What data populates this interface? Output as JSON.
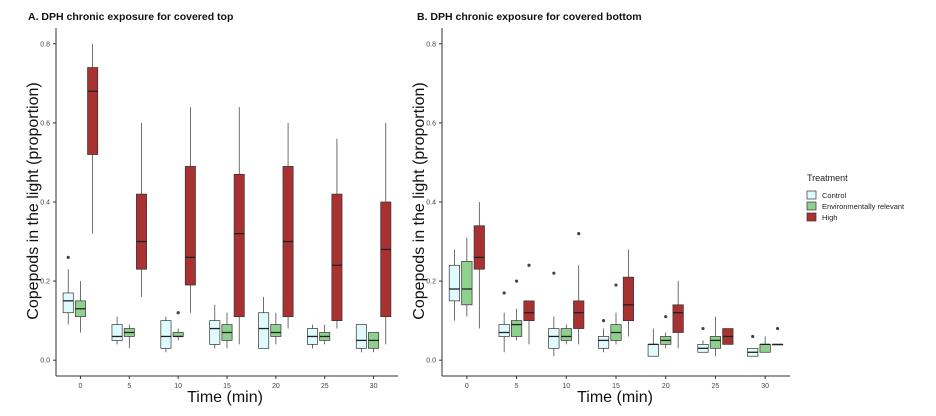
{
  "colors": {
    "control": "#e0fbfd",
    "env": "#90d08e",
    "high": "#a83232",
    "outline": "#333333"
  },
  "legend": {
    "title": "Treatment",
    "items": [
      {
        "label": "Control",
        "color": "#e0fbfd"
      },
      {
        "label": "Environmentally relevant",
        "color": "#90d08e"
      },
      {
        "label": "High",
        "color": "#a83232"
      }
    ]
  },
  "chart_data": [
    {
      "type": "box",
      "title": "A. DPH chronic exposure for covered top",
      "xlabel": "Time (min)",
      "ylabel": "Copepods in the light (proportion)",
      "categories": [
        "0",
        "5",
        "10",
        "15",
        "20",
        "25",
        "30"
      ],
      "ylim": [
        -0.04,
        0.84
      ],
      "yticks": [
        "0.0",
        "0.2",
        "0.4",
        "0.6",
        "0.8"
      ],
      "grid": false,
      "series": [
        {
          "name": "Control",
          "boxes": [
            {
              "min": 0.09,
              "q1": 0.12,
              "median": 0.15,
              "q3": 0.17,
              "max": 0.23,
              "outliers": [
                0.26
              ]
            },
            {
              "min": 0.04,
              "q1": 0.05,
              "median": 0.06,
              "q3": 0.09,
              "max": 0.11,
              "outliers": []
            },
            {
              "min": 0.02,
              "q1": 0.03,
              "median": 0.06,
              "q3": 0.1,
              "max": 0.11,
              "outliers": []
            },
            {
              "min": 0.03,
              "q1": 0.04,
              "median": 0.08,
              "q3": 0.1,
              "max": 0.14,
              "outliers": []
            },
            {
              "min": 0.03,
              "q1": 0.03,
              "median": 0.08,
              "q3": 0.12,
              "max": 0.16,
              "outliers": []
            },
            {
              "min": 0.03,
              "q1": 0.04,
              "median": 0.06,
              "q3": 0.08,
              "max": 0.09,
              "outliers": []
            },
            {
              "min": 0.02,
              "q1": 0.03,
              "median": 0.05,
              "q3": 0.09,
              "max": 0.09,
              "outliers": []
            }
          ]
        },
        {
          "name": "Environmentally relevant",
          "boxes": [
            {
              "min": 0.07,
              "q1": 0.11,
              "median": 0.13,
              "q3": 0.15,
              "max": 0.2,
              "outliers": []
            },
            {
              "min": 0.03,
              "q1": 0.06,
              "median": 0.07,
              "q3": 0.08,
              "max": 0.09,
              "outliers": []
            },
            {
              "min": 0.05,
              "q1": 0.06,
              "median": 0.06,
              "q3": 0.07,
              "max": 0.08,
              "outliers": [
                0.12
              ]
            },
            {
              "min": 0.03,
              "q1": 0.05,
              "median": 0.07,
              "q3": 0.09,
              "max": 0.12,
              "outliers": []
            },
            {
              "min": 0.04,
              "q1": 0.06,
              "median": 0.07,
              "q3": 0.09,
              "max": 0.12,
              "outliers": []
            },
            {
              "min": 0.04,
              "q1": 0.05,
              "median": 0.06,
              "q3": 0.07,
              "max": 0.09,
              "outliers": []
            },
            {
              "min": 0.02,
              "q1": 0.03,
              "median": 0.05,
              "q3": 0.07,
              "max": 0.07,
              "outliers": []
            }
          ]
        },
        {
          "name": "High",
          "boxes": [
            {
              "min": 0.32,
              "q1": 0.52,
              "median": 0.68,
              "q3": 0.74,
              "max": 0.8,
              "outliers": []
            },
            {
              "min": 0.16,
              "q1": 0.23,
              "median": 0.3,
              "q3": 0.42,
              "max": 0.6,
              "outliers": []
            },
            {
              "min": 0.12,
              "q1": 0.19,
              "median": 0.26,
              "q3": 0.49,
              "max": 0.64,
              "outliers": []
            },
            {
              "min": 0.04,
              "q1": 0.11,
              "median": 0.32,
              "q3": 0.47,
              "max": 0.64,
              "outliers": []
            },
            {
              "min": 0.08,
              "q1": 0.11,
              "median": 0.3,
              "q3": 0.49,
              "max": 0.6,
              "outliers": []
            },
            {
              "min": 0.08,
              "q1": 0.1,
              "median": 0.24,
              "q3": 0.42,
              "max": 0.56,
              "outliers": []
            },
            {
              "min": 0.04,
              "q1": 0.11,
              "median": 0.28,
              "q3": 0.4,
              "max": 0.6,
              "outliers": []
            }
          ]
        }
      ]
    },
    {
      "type": "box",
      "title": "B. DPH chronic exposure for covered bottom",
      "xlabel": "Time (min)",
      "ylabel": "Copepods in the light (proportion)",
      "categories": [
        "0",
        "5",
        "10",
        "15",
        "20",
        "25",
        "30"
      ],
      "ylim": [
        -0.04,
        0.84
      ],
      "yticks": [
        "0.0",
        "0.2",
        "0.4",
        "0.6",
        "0.8"
      ],
      "grid": false,
      "series": [
        {
          "name": "Control",
          "boxes": [
            {
              "min": 0.1,
              "q1": 0.15,
              "median": 0.18,
              "q3": 0.24,
              "max": 0.28,
              "outliers": []
            },
            {
              "min": 0.02,
              "q1": 0.06,
              "median": 0.07,
              "q3": 0.09,
              "max": 0.12,
              "outliers": [
                0.17
              ]
            },
            {
              "min": 0.01,
              "q1": 0.03,
              "median": 0.06,
              "q3": 0.08,
              "max": 0.11,
              "outliers": [
                0.22
              ]
            },
            {
              "min": 0.02,
              "q1": 0.03,
              "median": 0.05,
              "q3": 0.06,
              "max": 0.08,
              "outliers": [
                0.1
              ]
            },
            {
              "min": 0.01,
              "q1": 0.01,
              "median": 0.04,
              "q3": 0.04,
              "max": 0.08,
              "outliers": []
            },
            {
              "min": 0.02,
              "q1": 0.02,
              "median": 0.03,
              "q3": 0.04,
              "max": 0.05,
              "outliers": [
                0.08
              ]
            },
            {
              "min": 0.01,
              "q1": 0.01,
              "median": 0.02,
              "q3": 0.03,
              "max": 0.03,
              "outliers": [
                0.06
              ]
            }
          ]
        },
        {
          "name": "Environmentally relevant",
          "boxes": [
            {
              "min": 0.11,
              "q1": 0.14,
              "median": 0.18,
              "q3": 0.25,
              "max": 0.31,
              "outliers": []
            },
            {
              "min": 0.05,
              "q1": 0.06,
              "median": 0.09,
              "q3": 0.1,
              "max": 0.13,
              "outliers": [
                0.2
              ]
            },
            {
              "min": 0.04,
              "q1": 0.05,
              "median": 0.06,
              "q3": 0.08,
              "max": 0.09,
              "outliers": []
            },
            {
              "min": 0.04,
              "q1": 0.05,
              "median": 0.07,
              "q3": 0.09,
              "max": 0.12,
              "outliers": [
                0.19
              ]
            },
            {
              "min": 0.03,
              "q1": 0.04,
              "median": 0.05,
              "q3": 0.06,
              "max": 0.07,
              "outliers": [
                0.11
              ]
            },
            {
              "min": 0.01,
              "q1": 0.03,
              "median": 0.05,
              "q3": 0.06,
              "max": 0.11,
              "outliers": []
            },
            {
              "min": 0.02,
              "q1": 0.02,
              "median": 0.04,
              "q3": 0.04,
              "max": 0.06,
              "outliers": []
            }
          ]
        },
        {
          "name": "High",
          "boxes": [
            {
              "min": 0.08,
              "q1": 0.23,
              "median": 0.26,
              "q3": 0.34,
              "max": 0.4,
              "outliers": []
            },
            {
              "min": 0.04,
              "q1": 0.1,
              "median": 0.12,
              "q3": 0.15,
              "max": 0.15,
              "outliers": [
                0.24
              ]
            },
            {
              "min": 0.04,
              "q1": 0.08,
              "median": 0.12,
              "q3": 0.15,
              "max": 0.24,
              "outliers": [
                0.32
              ]
            },
            {
              "min": 0.06,
              "q1": 0.1,
              "median": 0.14,
              "q3": 0.21,
              "max": 0.28,
              "outliers": []
            },
            {
              "min": 0.03,
              "q1": 0.07,
              "median": 0.12,
              "q3": 0.14,
              "max": 0.2,
              "outliers": []
            },
            {
              "min": 0.04,
              "q1": 0.04,
              "median": 0.06,
              "q3": 0.08,
              "max": 0.08,
              "outliers": []
            },
            {
              "min": 0.04,
              "q1": 0.04,
              "median": 0.04,
              "q3": 0.04,
              "max": 0.04,
              "outliers": [
                0.08
              ]
            }
          ]
        }
      ]
    }
  ]
}
